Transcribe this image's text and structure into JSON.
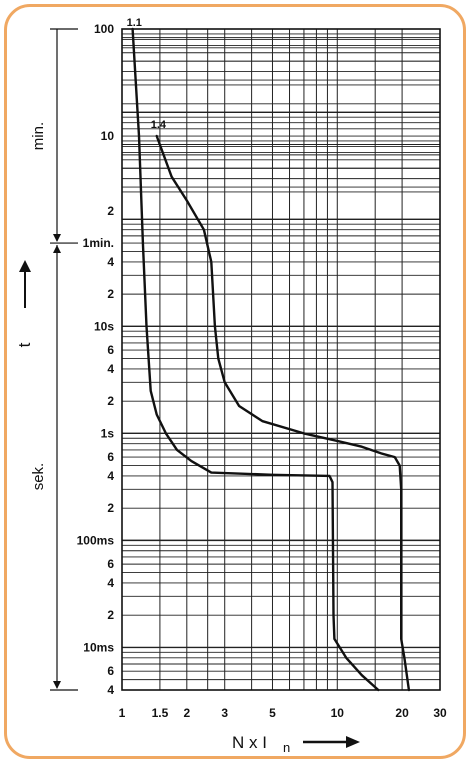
{
  "chart_data": {
    "type": "line",
    "x_scale": "log",
    "y_scale": "log",
    "xlim": [
      1,
      30
    ],
    "ylim_seconds": [
      0.004,
      6000
    ],
    "grid": true,
    "x_ticks": [
      1,
      1.5,
      2,
      3,
      5,
      10,
      20,
      30
    ],
    "x_tick_labels": [
      "1",
      "1.5",
      "2",
      "3",
      "5",
      "10",
      "20",
      "30"
    ],
    "y_ticks": [
      {
        "label": "100",
        "t": 6000
      },
      {
        "label": "10",
        "t": 600
      },
      {
        "label": "2",
        "t": 120
      },
      {
        "label": "1min.",
        "t": 60
      },
      {
        "label": "4",
        "t": 40
      },
      {
        "label": "2",
        "t": 20
      },
      {
        "label": "10s",
        "t": 10
      },
      {
        "label": "6",
        "t": 6
      },
      {
        "label": "4",
        "t": 4
      },
      {
        "label": "2",
        "t": 2
      },
      {
        "label": "1s",
        "t": 1
      },
      {
        "label": "6",
        "t": 0.6
      },
      {
        "label": "4",
        "t": 0.4
      },
      {
        "label": "2",
        "t": 0.2
      },
      {
        "label": "100ms",
        "t": 0.1
      },
      {
        "label": "6",
        "t": 0.06
      },
      {
        "label": "4",
        "t": 0.04
      },
      {
        "label": "2",
        "t": 0.02
      },
      {
        "label": "10ms",
        "t": 0.01
      },
      {
        "label": "6",
        "t": 0.006
      },
      {
        "label": "4",
        "t": 0.004
      }
    ],
    "xlabel_main": "N  x  I",
    "xlabel_sub": "n",
    "ylabel": "t",
    "sections": [
      {
        "label": "min.",
        "from_t": 6000,
        "to_t": 60
      },
      {
        "label": "sek.",
        "from_t": 60,
        "to_t": 0.004
      }
    ],
    "series": [
      {
        "label": "1.1",
        "points": [
          [
            1.12,
            6000
          ],
          [
            1.2,
            600
          ],
          [
            1.25,
            60
          ],
          [
            1.3,
            10
          ],
          [
            1.36,
            2.5
          ],
          [
            1.45,
            1.5
          ],
          [
            1.6,
            1
          ],
          [
            1.8,
            0.7
          ],
          [
            2.1,
            0.55
          ],
          [
            2.6,
            0.43
          ],
          [
            5,
            0.41
          ],
          [
            9.2,
            0.4
          ],
          [
            9.5,
            0.35
          ],
          [
            9.6,
            0.02
          ],
          [
            9.7,
            0.012
          ],
          [
            11,
            0.008
          ],
          [
            13,
            0.0055
          ],
          [
            15.5,
            0.004
          ]
        ]
      },
      {
        "label": "1.4",
        "points": [
          [
            1.45,
            600
          ],
          [
            1.7,
            250
          ],
          [
            2.0,
            150
          ],
          [
            2.4,
            80
          ],
          [
            2.6,
            40
          ],
          [
            2.65,
            20
          ],
          [
            2.7,
            10
          ],
          [
            2.8,
            5
          ],
          [
            3.0,
            3
          ],
          [
            3.5,
            1.8
          ],
          [
            4.5,
            1.3
          ],
          [
            7,
            1.0
          ],
          [
            10,
            0.85
          ],
          [
            13,
            0.75
          ],
          [
            16,
            0.65
          ],
          [
            18.5,
            0.6
          ],
          [
            19.5,
            0.5
          ],
          [
            19.8,
            0.3
          ],
          [
            19.8,
            0.012
          ],
          [
            20.5,
            0.008
          ],
          [
            21.5,
            0.004
          ]
        ]
      }
    ]
  }
}
